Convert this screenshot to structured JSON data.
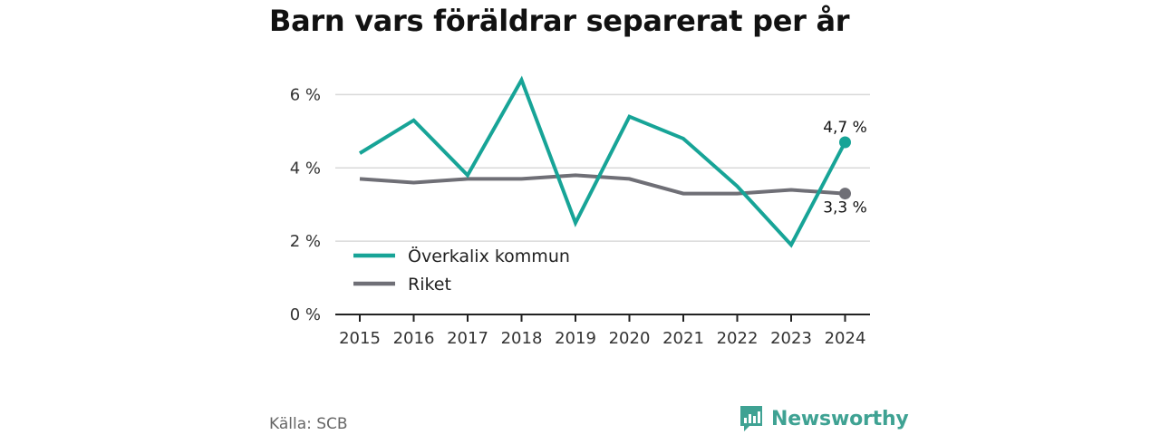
{
  "title": "Barn vars föräldrar separerat per år",
  "source": "Källa: SCB",
  "brand": {
    "name": "Newsworthy",
    "icon": "newsworthy-logo-icon",
    "color": "#3fa293"
  },
  "colors": {
    "teal": "#17a497",
    "gray": "#6f6f76",
    "grid": "#d9d9d9",
    "axis": "#222222"
  },
  "chart_data": {
    "type": "line",
    "title": "Barn vars föräldrar separerat per år",
    "categories": [
      "2015",
      "2016",
      "2017",
      "2018",
      "2019",
      "2020",
      "2021",
      "2022",
      "2023",
      "2024"
    ],
    "ylim": [
      0,
      7
    ],
    "yticks": [
      0,
      2,
      4,
      6
    ],
    "ytick_labels": [
      "0 %",
      "2 %",
      "4 %",
      "6 %"
    ],
    "grid": true,
    "legend_position": "inside-bottom-left",
    "series": [
      {
        "name": "Överkalix kommun",
        "color": "#17a497",
        "values": [
          4.4,
          5.3,
          3.8,
          6.4,
          2.5,
          5.4,
          4.8,
          3.5,
          1.9,
          4.7
        ],
        "end_label": "4,7 %"
      },
      {
        "name": "Riket",
        "color": "#6f6f76",
        "values": [
          3.7,
          3.6,
          3.7,
          3.7,
          3.8,
          3.7,
          3.3,
          3.3,
          3.4,
          3.3
        ],
        "end_label": "3,3 %"
      }
    ]
  }
}
